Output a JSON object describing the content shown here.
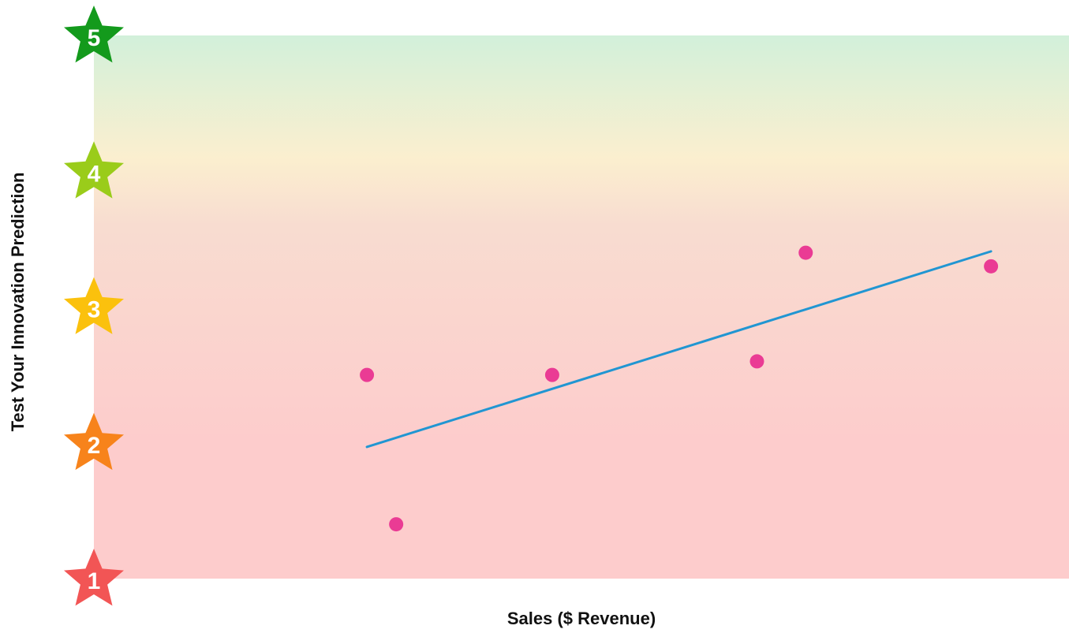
{
  "chart_data": {
    "type": "scatter",
    "title": "",
    "xlabel": "Sales ($ Revenue)",
    "ylabel": "Test Your Innovation Prediction",
    "xlim": [
      0,
      100
    ],
    "ylim": [
      1,
      5
    ],
    "grid": false,
    "legend": "none",
    "y_ticks": [
      {
        "value": 1,
        "label": "1",
        "color": "#f25555"
      },
      {
        "value": 2,
        "label": "2",
        "color": "#f7831b"
      },
      {
        "value": 3,
        "label": "3",
        "color": "#fbc10d"
      },
      {
        "value": 4,
        "label": "4",
        "color": "#9acc1a"
      },
      {
        "value": 5,
        "label": "5",
        "color": "#139a1c"
      }
    ],
    "background_gradient": [
      {
        "value": 5,
        "color": "#d2f0da"
      },
      {
        "value": 4.1,
        "color": "#fbefcf"
      },
      {
        "value": 3.6,
        "color": "#f8dcd0"
      },
      {
        "value": 2,
        "color": "#fdcccc"
      },
      {
        "value": 1,
        "color": "#fdcccc"
      }
    ],
    "series": [
      {
        "type": "scatter",
        "color": "#ea3b94",
        "x": [
          28,
          31,
          47,
          68,
          73,
          92
        ],
        "y": [
          2.5,
          1.4,
          2.5,
          2.6,
          3.4,
          3.3
        ]
      },
      {
        "type": "line",
        "color": "#2196d2",
        "x": [
          28,
          92
        ],
        "y": [
          1.97,
          3.41
        ]
      }
    ]
  }
}
